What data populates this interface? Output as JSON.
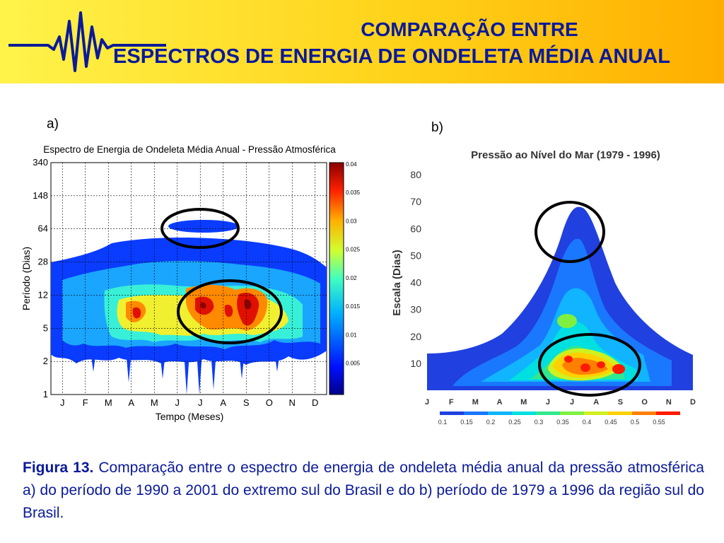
{
  "header": {
    "title_line1": "COMPARAÇÃO ENTRE",
    "title_line2": "ESPECTROS DE ENERGIA DE ONDELETA MÉDIA ANUAL",
    "wave_icon": "wave-logo-icon"
  },
  "panel_a_label": "a)",
  "panel_b_label": "b)",
  "caption": {
    "figure_label": "Figura 13.",
    "text": "Comparação entre o espectro de energia de ondeleta média anual da pressão atmosférica a) do período de 1990 a 2001 do extremo sul do Brasil e do b) período de 1979 a 1996 da região sul do Brasil."
  },
  "chart_data": [
    {
      "type": "heatmap",
      "title": "Espectro de Energia de Ondeleta Média Anual - Pressão Atmosférica",
      "xlabel": "Tempo (Meses)",
      "ylabel": "Período (Dias)",
      "x_ticks": [
        "J",
        "F",
        "M",
        "A",
        "M",
        "J",
        "J",
        "A",
        "S",
        "O",
        "N",
        "D"
      ],
      "y_ticks": [
        "340",
        "148",
        "64",
        "28",
        "12",
        "5",
        "2",
        "1"
      ],
      "y_scale": "log",
      "colorbar_ticks": [
        "0.04",
        "0.035",
        "0.03",
        "0.025",
        "0.02",
        "0.015",
        "0.01",
        "0.005"
      ],
      "colorbar_range": [
        0,
        0.04
      ],
      "grid": true,
      "annotations": [
        "ellipse around band near 64 dias (Jun-Jul)",
        "ellipse around high energy region 5-12 dias (Jul-Set)"
      ]
    },
    {
      "type": "heatmap",
      "title": "Pressão ao Nível do Mar (1979 - 1996)",
      "xlabel": "",
      "ylabel": "Escala (Dias)",
      "x_ticks": [
        "J",
        "F",
        "M",
        "A",
        "M",
        "J",
        "J",
        "A",
        "S",
        "O",
        "N",
        "D"
      ],
      "y_ticks": [
        "80",
        "70",
        "60",
        "50",
        "40",
        "30",
        "20",
        "10"
      ],
      "ylim": [
        0,
        85
      ],
      "colorbar_ticks": [
        "0.1",
        "0.15",
        "0.2",
        "0.25",
        "0.3",
        "0.35",
        "0.4",
        "0.45",
        "0.5",
        "0.55"
      ],
      "colorbar_colors": [
        "#2040e0",
        "#1a78ff",
        "#10b4ff",
        "#00e0e0",
        "#30e890",
        "#80f040",
        "#d0f020",
        "#ffd000",
        "#ff8000",
        "#ff1a00"
      ],
      "grid": false,
      "annotations": [
        "ellipse around peak near 60-70 dias (Jul-Ago)",
        "ellipse around high energy region 5-20 dias (Jul-Out)"
      ]
    }
  ]
}
